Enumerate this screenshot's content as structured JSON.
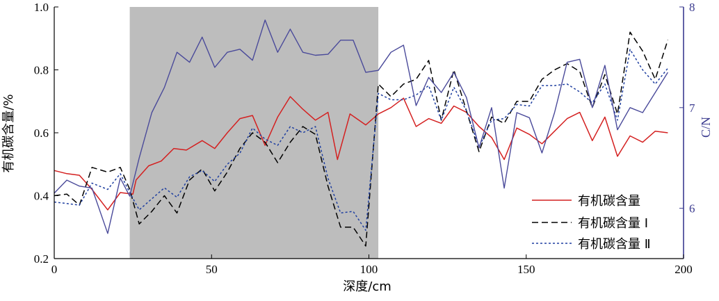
{
  "chart_data": {
    "type": "line",
    "xlabel": "深度/cm",
    "ylabel": "有机碳含量/%",
    "y2label": "C/N",
    "xlim": [
      0,
      200
    ],
    "ylim": [
      0.2,
      1.0
    ],
    "y2lim": [
      5.5,
      8.0
    ],
    "xticks": [
      "0",
      "50",
      "100",
      "150",
      "200"
    ],
    "yticks": [
      "0.2",
      "0.4",
      "0.6",
      "0.8",
      "1.0"
    ],
    "y2ticks": [
      "6",
      "7",
      "8"
    ],
    "shaded_region": [
      24,
      103
    ],
    "colors": {
      "toc": "#d42020",
      "toc1": "#000000",
      "toc2": "#1f3fa0",
      "cn": "#4a4a9a",
      "shade": "#bdbdbd"
    },
    "legend_position": "bottom-right",
    "legend": [
      "有机碳含量",
      "有机碳含量 Ⅰ",
      "有机碳含量 Ⅱ"
    ],
    "series": [
      {
        "name": "有机碳含量",
        "axis": "left",
        "style": "solid",
        "x": [
          0,
          4,
          8,
          12,
          17,
          21,
          25,
          26,
          30,
          34,
          38,
          42,
          47,
          51,
          55,
          59,
          63,
          67,
          71,
          75,
          79,
          83,
          87,
          90,
          94,
          99,
          103,
          107,
          111,
          115,
          119,
          123,
          127,
          131,
          135,
          139,
          143,
          147,
          151,
          155,
          159,
          163,
          167,
          171,
          175,
          179,
          183,
          187,
          191,
          195
        ],
        "values": [
          0.48,
          0.47,
          0.465,
          0.42,
          0.355,
          0.41,
          0.405,
          0.45,
          0.495,
          0.51,
          0.55,
          0.545,
          0.575,
          0.55,
          0.6,
          0.645,
          0.655,
          0.56,
          0.65,
          0.715,
          0.675,
          0.64,
          0.665,
          0.515,
          0.66,
          0.625,
          0.66,
          0.68,
          0.71,
          0.62,
          0.645,
          0.63,
          0.685,
          0.665,
          0.62,
          0.585,
          0.515,
          0.615,
          0.595,
          0.565,
          0.605,
          0.645,
          0.665,
          0.575,
          0.65,
          0.525,
          0.59,
          0.57,
          0.605,
          0.6
        ]
      },
      {
        "name": "有机碳含量 Ⅰ",
        "axis": "left",
        "style": "dashed",
        "x": [
          0,
          4,
          8,
          12,
          17,
          21,
          24,
          27,
          31,
          35,
          39,
          43,
          47,
          51,
          55,
          59,
          63,
          67,
          71,
          75,
          79,
          83,
          87,
          91,
          95,
          99,
          103,
          107,
          111,
          115,
          119,
          123,
          127,
          131,
          135,
          139,
          143,
          147,
          151,
          155,
          159,
          163,
          167,
          171,
          175,
          179,
          183,
          187,
          191,
          195
        ],
        "values": [
          0.4,
          0.405,
          0.37,
          0.49,
          0.475,
          0.49,
          0.42,
          0.31,
          0.35,
          0.4,
          0.345,
          0.45,
          0.485,
          0.415,
          0.475,
          0.55,
          0.6,
          0.57,
          0.505,
          0.57,
          0.62,
          0.595,
          0.43,
          0.3,
          0.3,
          0.24,
          0.755,
          0.715,
          0.755,
          0.77,
          0.83,
          0.64,
          0.8,
          0.67,
          0.54,
          0.65,
          0.63,
          0.7,
          0.7,
          0.77,
          0.8,
          0.82,
          0.795,
          0.68,
          0.785,
          0.66,
          0.92,
          0.86,
          0.77,
          0.895
        ]
      },
      {
        "name": "有机碳含量 Ⅱ",
        "axis": "left",
        "style": "dotted",
        "x": [
          0,
          4,
          8,
          12,
          17,
          21,
          24,
          27,
          31,
          35,
          39,
          43,
          47,
          51,
          55,
          59,
          63,
          67,
          71,
          75,
          79,
          83,
          87,
          91,
          95,
          99,
          103,
          107,
          111,
          115,
          119,
          123,
          127,
          131,
          135,
          139,
          143,
          147,
          151,
          155,
          159,
          163,
          167,
          171,
          175,
          179,
          183,
          187,
          191,
          195
        ],
        "values": [
          0.38,
          0.375,
          0.37,
          0.44,
          0.42,
          0.47,
          0.41,
          0.355,
          0.39,
          0.425,
          0.395,
          0.46,
          0.48,
          0.445,
          0.5,
          0.535,
          0.615,
          0.58,
          0.56,
          0.62,
          0.6,
          0.62,
          0.455,
          0.345,
          0.35,
          0.29,
          0.725,
          0.705,
          0.705,
          0.72,
          0.75,
          0.64,
          0.745,
          0.67,
          0.555,
          0.64,
          0.645,
          0.69,
          0.685,
          0.75,
          0.75,
          0.755,
          0.73,
          0.695,
          0.755,
          0.64,
          0.865,
          0.8,
          0.755,
          0.805
        ]
      },
      {
        "name": "C/N",
        "axis": "right",
        "style": "solid",
        "x": [
          0,
          4,
          8,
          12,
          17,
          21,
          24,
          27,
          31,
          35,
          39,
          43,
          47,
          51,
          55,
          59,
          63,
          67,
          71,
          75,
          79,
          83,
          87,
          91,
          95,
          99,
          103,
          107,
          111,
          115,
          119,
          123,
          127,
          131,
          135,
          139,
          143,
          147,
          151,
          155,
          159,
          163,
          167,
          171,
          175,
          179,
          183,
          187,
          191,
          195
        ],
        "values": [
          6.15,
          6.28,
          6.22,
          6.2,
          5.75,
          6.3,
          6.12,
          6.5,
          6.95,
          7.2,
          7.55,
          7.45,
          7.7,
          7.4,
          7.55,
          7.58,
          7.47,
          7.87,
          7.55,
          7.78,
          7.55,
          7.52,
          7.53,
          7.67,
          7.67,
          7.35,
          7.37,
          7.55,
          7.62,
          7.02,
          7.3,
          7.15,
          7.35,
          7.1,
          6.6,
          7.0,
          6.2,
          6.95,
          6.9,
          6.55,
          6.95,
          7.45,
          7.48,
          7.0,
          7.42,
          6.78,
          7.0,
          6.95,
          7.15,
          7.35
        ]
      }
    ]
  }
}
